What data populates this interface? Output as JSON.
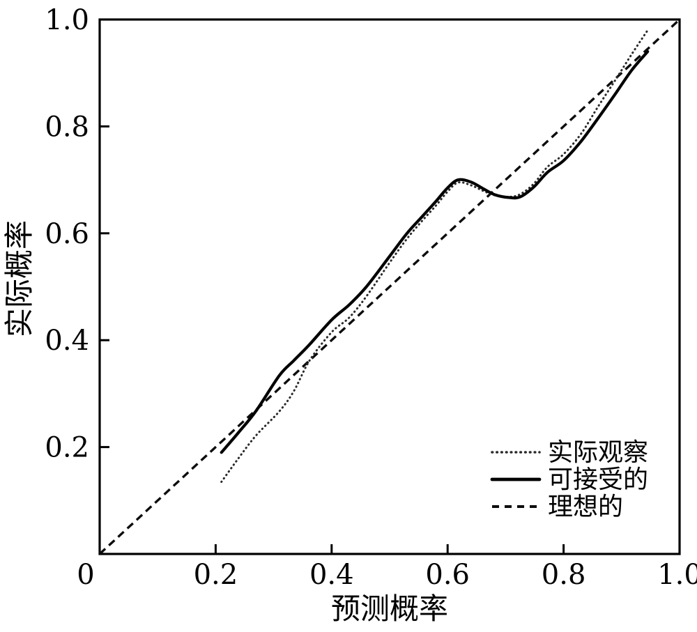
{
  "figure": {
    "background": "#ffffff",
    "frame_color": "#000000"
  },
  "chart_data": {
    "type": "line",
    "title": "",
    "xlabel": "预测概率",
    "ylabel": "实际概率",
    "xlim": [
      0,
      1.0
    ],
    "ylim": [
      0,
      1.0
    ],
    "grid": false,
    "xticks": {
      "values": [
        0,
        0.2,
        0.4,
        0.6,
        0.8,
        1.0
      ],
      "labels": [
        "0",
        "0.2",
        "0.4",
        "0.6",
        "0.8",
        "1.0"
      ]
    },
    "yticks": {
      "values": [
        0.2,
        0.4,
        0.6,
        0.8,
        1.0
      ],
      "labels": [
        "0.2",
        "0.4",
        "0.6",
        "0.8",
        "1.0"
      ]
    },
    "legend": {
      "position": "lower-right"
    },
    "series": [
      {
        "name": "实际观察",
        "style": "dotted",
        "color": "#2a2a2a",
        "points": [
          [
            0.21,
            0.135
          ],
          [
            0.24,
            0.18
          ],
          [
            0.27,
            0.222
          ],
          [
            0.31,
            0.267
          ],
          [
            0.335,
            0.305
          ],
          [
            0.362,
            0.362
          ],
          [
            0.4,
            0.415
          ],
          [
            0.43,
            0.442
          ],
          [
            0.46,
            0.482
          ],
          [
            0.5,
            0.545
          ],
          [
            0.53,
            0.59
          ],
          [
            0.555,
            0.622
          ],
          [
            0.58,
            0.652
          ],
          [
            0.6,
            0.678
          ],
          [
            0.618,
            0.695
          ],
          [
            0.64,
            0.69
          ],
          [
            0.662,
            0.679
          ],
          [
            0.682,
            0.671
          ],
          [
            0.705,
            0.668
          ],
          [
            0.725,
            0.673
          ],
          [
            0.748,
            0.692
          ],
          [
            0.772,
            0.724
          ],
          [
            0.8,
            0.748
          ],
          [
            0.83,
            0.786
          ],
          [
            0.86,
            0.838
          ],
          [
            0.89,
            0.888
          ],
          [
            0.918,
            0.936
          ],
          [
            0.945,
            0.98
          ]
        ]
      },
      {
        "name": "可接受的",
        "style": "solid",
        "color": "#000000",
        "points": [
          [
            0.21,
            0.19
          ],
          [
            0.24,
            0.228
          ],
          [
            0.27,
            0.268
          ],
          [
            0.31,
            0.334
          ],
          [
            0.335,
            0.362
          ],
          [
            0.362,
            0.392
          ],
          [
            0.4,
            0.438
          ],
          [
            0.43,
            0.466
          ],
          [
            0.46,
            0.5
          ],
          [
            0.5,
            0.557
          ],
          [
            0.53,
            0.6
          ],
          [
            0.555,
            0.63
          ],
          [
            0.58,
            0.66
          ],
          [
            0.6,
            0.685
          ],
          [
            0.618,
            0.7
          ],
          [
            0.64,
            0.696
          ],
          [
            0.662,
            0.683
          ],
          [
            0.682,
            0.672
          ],
          [
            0.705,
            0.667
          ],
          [
            0.725,
            0.668
          ],
          [
            0.748,
            0.686
          ],
          [
            0.772,
            0.714
          ],
          [
            0.8,
            0.736
          ],
          [
            0.83,
            0.772
          ],
          [
            0.86,
            0.816
          ],
          [
            0.89,
            0.862
          ],
          [
            0.918,
            0.906
          ],
          [
            0.945,
            0.94
          ]
        ]
      },
      {
        "name": "理想的",
        "style": "dashed",
        "color": "#0d0d0d",
        "points": [
          [
            0.0,
            0.0
          ],
          [
            1.0,
            1.0
          ]
        ]
      }
    ]
  }
}
